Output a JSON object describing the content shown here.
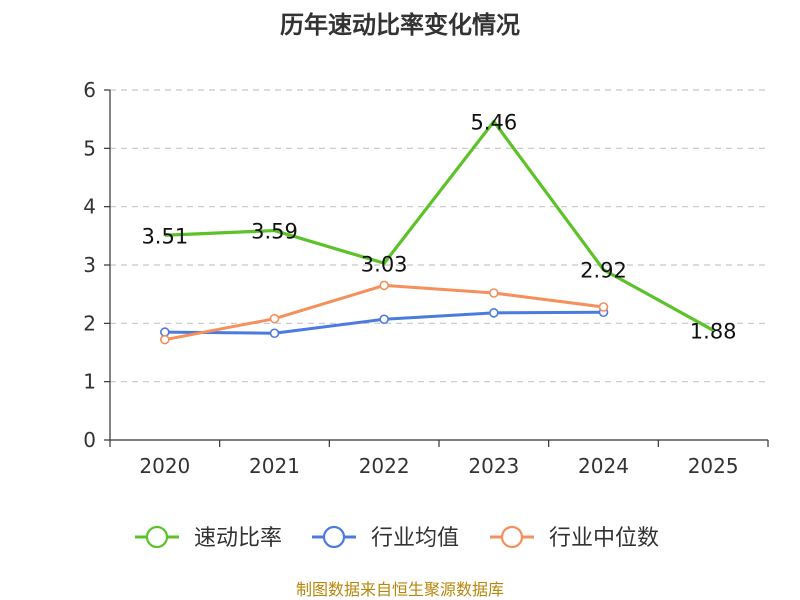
{
  "chart_data": {
    "type": "line",
    "title": "历年速动比率变化情况",
    "categories": [
      "2020",
      "2021",
      "2022",
      "2023",
      "2024",
      "2025"
    ],
    "ylim": [
      0,
      6
    ],
    "yticks": [
      0,
      1,
      2,
      3,
      4,
      5,
      6
    ],
    "grid": true,
    "legend_position": "bottom",
    "series": [
      {
        "name": "速动比率",
        "color": "#5cc22a",
        "values": [
          3.51,
          3.59,
          3.03,
          5.46,
          2.92,
          1.88
        ],
        "labels": [
          "3.51",
          "3.59",
          "3.03",
          "5.46",
          "2.92",
          "1.88"
        ],
        "show_labels": true
      },
      {
        "name": "行业均值",
        "color": "#4c7bdf",
        "values": [
          1.85,
          1.83,
          2.07,
          2.18,
          2.19,
          null
        ],
        "show_labels": false
      },
      {
        "name": "行业中位数",
        "color": "#f58f5b",
        "values": [
          1.72,
          2.08,
          2.65,
          2.52,
          2.28,
          null
        ],
        "show_labels": false
      }
    ],
    "source": "制图数据来自恒生聚源数据库"
  }
}
